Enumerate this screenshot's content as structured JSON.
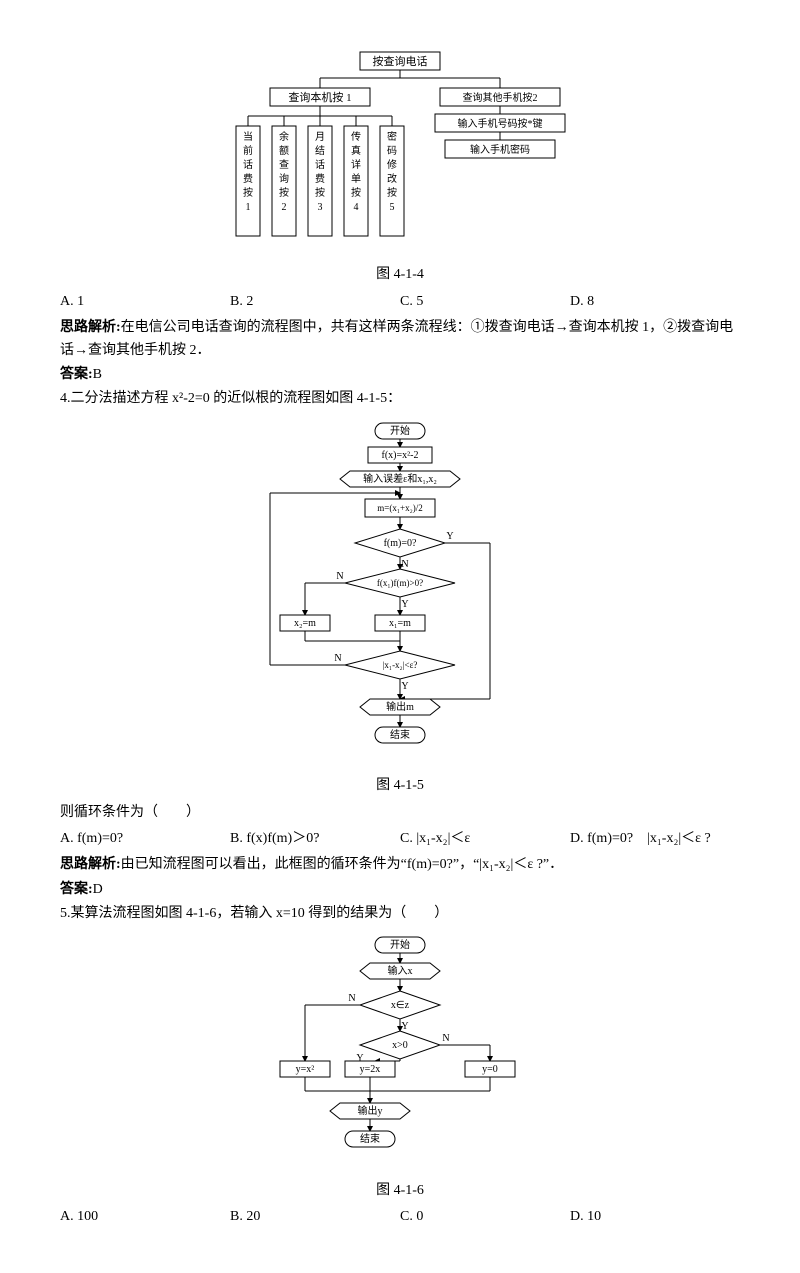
{
  "tree": {
    "root": "按查询电话",
    "left": {
      "label": "查询本机按 1",
      "leaves": [
        "当前话费按1",
        "余额查询按2",
        "月结话费按3",
        "传真详单按4",
        "密码修改按5"
      ]
    },
    "right": {
      "label": "查询其他手机按2",
      "sub1": "输入手机号码按*键",
      "sub2": "输入手机密码"
    },
    "caption": "图 4-1-4"
  },
  "q3": {
    "options": {
      "A": "A. 1",
      "B": "B. 2",
      "C": "C. 5",
      "D": "D. 8"
    },
    "analysis_label": "思路解析:",
    "analysis": "在电信公司电话查询的流程图中，共有这样两条流程线：①拨查询电话→查询本机按 1，②拨查询电话→查询其他手机按 2．",
    "answer_label": "答案:",
    "answer": "B"
  },
  "q4": {
    "stem": "4.二分法描述方程 x²-2=0 的近似根的流程图如图 4-1-5：",
    "caption": "图 4-1-5",
    "loop_prompt": "则循环条件为（　　）",
    "options": {
      "A": "A. f(m)=0?",
      "B": "B. f(x)f(m)＞0?",
      "C": "C. |x₁-x₂|＜ε",
      "D": "D. f(m)=0?　|x₁-x₂|＜ε ?"
    },
    "analysis_label": "思路解析:",
    "analysis": "由已知流程图可以看出，此框图的循环条件为“f(m)=0?”，“|x₁-x₂|＜ε ?”．",
    "answer_label": "答案:",
    "answer": "D"
  },
  "q5": {
    "stem": "5.某算法流程图如图 4-1-6，若输入 x=10 得到的结果为（　　）",
    "caption": "图 4-1-6",
    "options": {
      "A": "A. 100",
      "B": "B. 20",
      "C": "C. 0",
      "D": "D. 10"
    }
  },
  "flow415": {
    "start": "开始",
    "fx": "f(x)=x²-2",
    "input": "输入误差ε和x₁,x₂",
    "m": "m=(x₁+x₂)/2",
    "d1": "f(m)=0?",
    "d2": "f(x₁)f(m)>0?",
    "x2m": "x₂=m",
    "x1m": "x₁=m",
    "d3": "|x₁-x₂|<ε?",
    "out": "输出m",
    "end": "结束",
    "Y": "Y",
    "N": "N"
  },
  "flow416": {
    "start": "开始",
    "input": "输入x",
    "d1": "x∈z",
    "d2": "x>0",
    "yx2": "y=x²",
    "y2x": "y=2x",
    "y0": "y=0",
    "out": "输出y",
    "end": "结束",
    "Y": "Y",
    "N": "N"
  }
}
